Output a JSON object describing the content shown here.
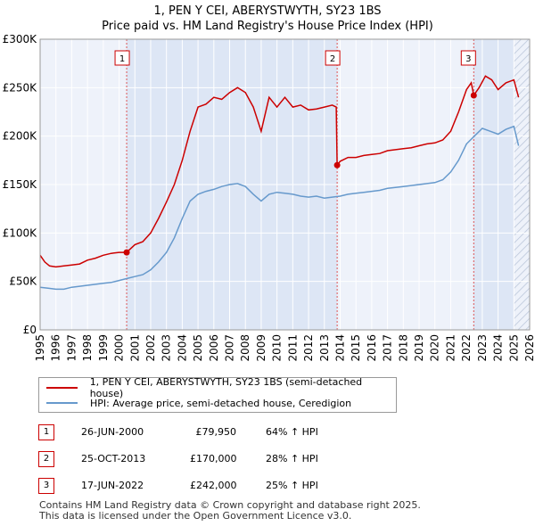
{
  "title_line1": "1, PEN Y CEI, ABERYSTWYTH, SY23 1BS",
  "title_line2": "Price paid vs. HM Land Registry's House Price Index (HPI)",
  "colors": {
    "property": "#cc0000",
    "hpi": "#6699cc",
    "shade": "#dde6f5"
  },
  "chart_data": {
    "type": "line",
    "title": "Price paid vs. HM Land Registry's House Price Index (HPI)",
    "xlabel": "",
    "ylabel": "",
    "xlim": [
      1995,
      2026
    ],
    "ylim": [
      0,
      300000
    ],
    "x_ticks": [
      "1995",
      "1996",
      "1997",
      "1998",
      "1999",
      "2000",
      "2001",
      "2002",
      "2003",
      "2004",
      "2005",
      "2006",
      "2007",
      "2008",
      "2009",
      "2010",
      "2011",
      "2012",
      "2013",
      "2014",
      "2015",
      "2016",
      "2017",
      "2018",
      "2019",
      "2020",
      "2021",
      "2022",
      "2023",
      "2024",
      "2025",
      "2026"
    ],
    "y_ticks": [
      {
        "v": 0,
        "label": "£0"
      },
      {
        "v": 50000,
        "label": "£50K"
      },
      {
        "v": 100000,
        "label": "£100K"
      },
      {
        "v": 150000,
        "label": "£150K"
      },
      {
        "v": 200000,
        "label": "£200K"
      },
      {
        "v": 250000,
        "label": "£250K"
      },
      {
        "v": 300000,
        "label": "£300K"
      }
    ],
    "grid": true,
    "series": [
      {
        "name": "1, PEN Y CEI, ABERYSTWYTH, SY23 1BS (semi-detached house)",
        "x": [
          1995.0,
          1995.3,
          1995.6,
          1996.0,
          1996.5,
          1997.0,
          1997.5,
          1998.0,
          1998.5,
          1999.0,
          1999.5,
          2000.0,
          2000.48,
          2001.0,
          2001.5,
          2002.0,
          2002.5,
          2003.0,
          2003.5,
          2004.0,
          2004.5,
          2005.0,
          2005.5,
          2006.0,
          2006.5,
          2007.0,
          2007.5,
          2008.0,
          2008.5,
          2009.0,
          2009.5,
          2010.0,
          2010.5,
          2011.0,
          2011.5,
          2012.0,
          2012.5,
          2013.0,
          2013.5,
          2013.75,
          2013.81,
          2014.0,
          2014.5,
          2015.0,
          2015.5,
          2016.0,
          2016.5,
          2017.0,
          2017.5,
          2018.0,
          2018.5,
          2019.0,
          2019.5,
          2020.0,
          2020.5,
          2021.0,
          2021.5,
          2022.0,
          2022.3,
          2022.46,
          2022.8,
          2023.2,
          2023.6,
          2024.0,
          2024.5,
          2025.0,
          2025.3
        ],
        "y": [
          77000,
          70000,
          66000,
          65000,
          66000,
          67000,
          68000,
          72000,
          74000,
          77000,
          79000,
          80000,
          79950,
          88000,
          91000,
          100000,
          115000,
          132000,
          150000,
          175000,
          205000,
          230000,
          233000,
          240000,
          238000,
          245000,
          250000,
          245000,
          230000,
          205000,
          240000,
          230000,
          240000,
          230000,
          232000,
          227000,
          228000,
          230000,
          232000,
          230000,
          170000,
          174000,
          178000,
          178000,
          180000,
          181000,
          182000,
          185000,
          186000,
          187000,
          188000,
          190000,
          192000,
          193000,
          196000,
          205000,
          225000,
          248000,
          255000,
          242000,
          250000,
          262000,
          258000,
          248000,
          255000,
          258000,
          240000
        ]
      },
      {
        "name": "HPI: Average price, semi-detached house, Ceredigion",
        "x": [
          1995.0,
          1995.5,
          1996.0,
          1996.5,
          1997.0,
          1997.5,
          1998.0,
          1998.5,
          1999.0,
          1999.5,
          2000.0,
          2000.5,
          2001.0,
          2001.5,
          2002.0,
          2002.5,
          2003.0,
          2003.5,
          2004.0,
          2004.5,
          2005.0,
          2005.5,
          2006.0,
          2006.5,
          2007.0,
          2007.5,
          2008.0,
          2008.5,
          2009.0,
          2009.5,
          2010.0,
          2010.5,
          2011.0,
          2011.5,
          2012.0,
          2012.5,
          2013.0,
          2013.5,
          2014.0,
          2014.5,
          2015.0,
          2015.5,
          2016.0,
          2016.5,
          2017.0,
          2017.5,
          2018.0,
          2018.5,
          2019.0,
          2019.5,
          2020.0,
          2020.5,
          2021.0,
          2021.5,
          2022.0,
          2022.5,
          2023.0,
          2023.5,
          2024.0,
          2024.5,
          2025.0,
          2025.3
        ],
        "y": [
          44000,
          43000,
          42000,
          42000,
          44000,
          45000,
          46000,
          47000,
          48000,
          49000,
          51000,
          53000,
          55000,
          57000,
          62000,
          70000,
          80000,
          95000,
          115000,
          133000,
          140000,
          143000,
          145000,
          148000,
          150000,
          151000,
          148000,
          140000,
          133000,
          140000,
          142000,
          141000,
          140000,
          138000,
          137000,
          138000,
          136000,
          137000,
          138000,
          140000,
          141000,
          142000,
          143000,
          144000,
          146000,
          147000,
          148000,
          149000,
          150000,
          151000,
          152000,
          155000,
          163000,
          175000,
          192000,
          200000,
          208000,
          205000,
          202000,
          207000,
          210000,
          190000
        ]
      }
    ],
    "sales": [
      {
        "n": "1",
        "x": 2000.48,
        "y": 79950
      },
      {
        "n": "2",
        "x": 2013.81,
        "y": 170000
      },
      {
        "n": "3",
        "x": 2022.46,
        "y": 242000
      }
    ]
  },
  "legend": {
    "property": "1, PEN Y CEI, ABERYSTWYTH, SY23 1BS (semi-detached house)",
    "hpi": "HPI: Average price, semi-detached house, Ceredigion"
  },
  "sales": [
    {
      "n": "1",
      "date": "26-JUN-2000",
      "price": "£79,950",
      "hpi": "64% ↑ HPI"
    },
    {
      "n": "2",
      "date": "25-OCT-2013",
      "price": "£170,000",
      "hpi": "28% ↑ HPI"
    },
    {
      "n": "3",
      "date": "17-JUN-2022",
      "price": "£242,000",
      "hpi": "25% ↑ HPI"
    }
  ],
  "footer_line1": "Contains HM Land Registry data © Crown copyright and database right 2025.",
  "footer_line2": "This data is licensed under the Open Government Licence v3.0."
}
